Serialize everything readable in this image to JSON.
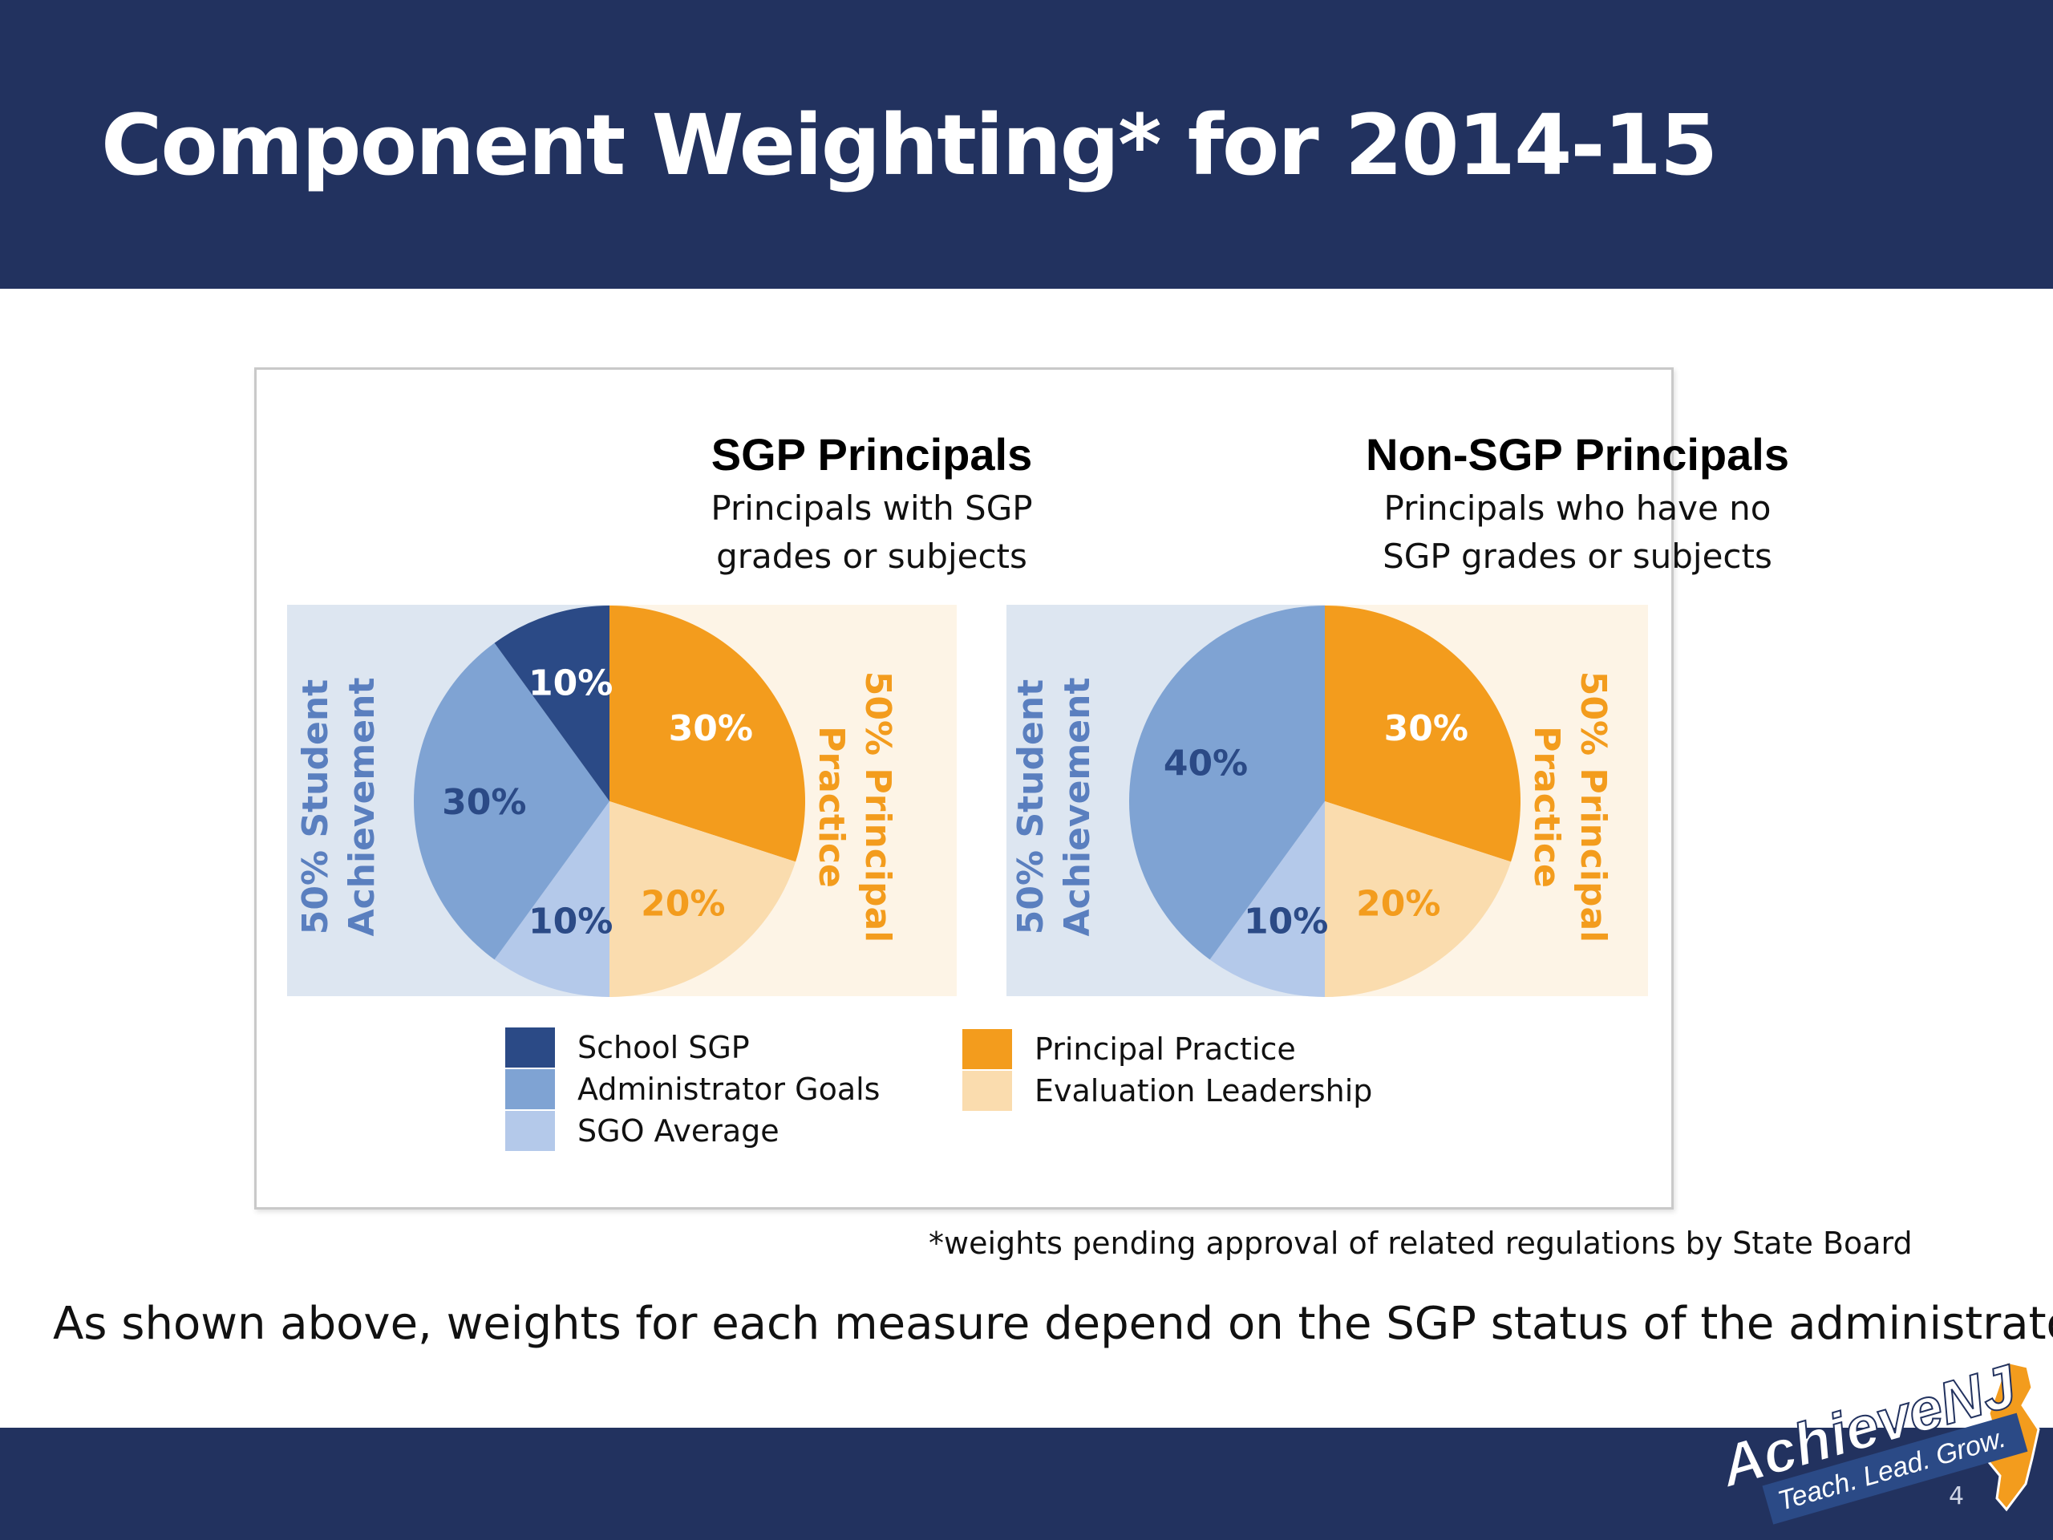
{
  "slide": {
    "title": "Component Weighting* for 2014-15",
    "footnote": "*weights pending approval of related regulations by State Board",
    "caption": "As shown above, weights for each measure depend on the SGP status of the administrator.",
    "page_number": "4"
  },
  "logo": {
    "text": "AchieveNJ",
    "tagline": "Teach. Lead. Grow."
  },
  "colors": {
    "navy": "#22325f",
    "school_sgp": "#2b4a86",
    "administrator_goals": "#7fa3d3",
    "sgo_average": "#b4c9ea",
    "principal_practice": "#f39c1d",
    "evaluation_leadership": "#fadcae",
    "student_band_bg": "#dde6f1",
    "practice_band_bg": "#fdf4e6",
    "student_band_text": "#5a7fbf",
    "practice_band_text": "#f39c1d"
  },
  "legend": {
    "left": [
      {
        "label": "School SGP",
        "color": "#2b4a86"
      },
      {
        "label": "Administrator Goals",
        "color": "#7fa3d3"
      },
      {
        "label": "SGO Average",
        "color": "#b4c9ea"
      }
    ],
    "right": [
      {
        "label": "Principal Practice",
        "color": "#f39c1d"
      },
      {
        "label": "Evaluation Leadership",
        "color": "#fadcae"
      }
    ]
  },
  "chart_data": [
    {
      "type": "pie",
      "title": "SGP Principals",
      "subtitle_lines": [
        "Principals with SGP",
        "grades or subjects"
      ],
      "left_band_label": [
        "50% Student",
        "Achievement"
      ],
      "right_band_label": [
        "50% Principal",
        "Practice"
      ],
      "slices": [
        {
          "name": "Principal Practice",
          "value": 30,
          "label": "30%"
        },
        {
          "name": "Evaluation Leadership",
          "value": 20,
          "label": "20%"
        },
        {
          "name": "SGO Average",
          "value": 10,
          "label": "10%"
        },
        {
          "name": "Administrator Goals",
          "value": 30,
          "label": "30%"
        },
        {
          "name": "School SGP",
          "value": 10,
          "label": "10%"
        }
      ]
    },
    {
      "type": "pie",
      "title": "Non-SGP Principals",
      "subtitle_lines": [
        "Principals who have no",
        "SGP grades or subjects"
      ],
      "left_band_label": [
        "50% Student",
        "Achievement"
      ],
      "right_band_label": [
        "50% Principal",
        "Practice"
      ],
      "slices": [
        {
          "name": "Principal Practice",
          "value": 30,
          "label": "30%"
        },
        {
          "name": "Evaluation Leadership",
          "value": 20,
          "label": "20%"
        },
        {
          "name": "SGO Average",
          "value": 10,
          "label": "10%"
        },
        {
          "name": "Administrator Goals",
          "value": 40,
          "label": "40%"
        }
      ]
    }
  ]
}
